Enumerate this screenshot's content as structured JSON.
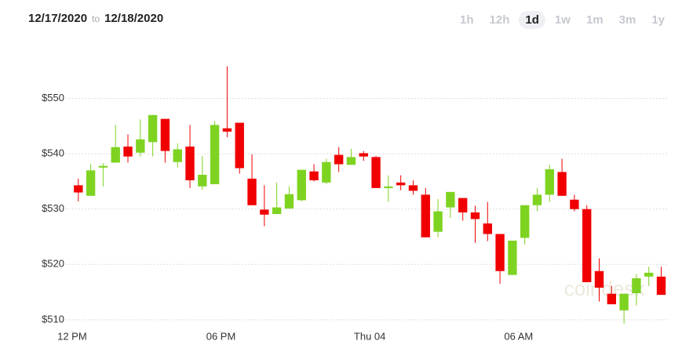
{
  "header": {
    "start_date": "12/17/2020",
    "separator": "to",
    "end_date": "12/18/2020",
    "ranges": [
      "1h",
      "12h",
      "1d",
      "1w",
      "1m",
      "3m",
      "1y"
    ],
    "active_range": "1d"
  },
  "chart_data": {
    "type": "candlestick",
    "watermark": "coindesk",
    "open": [
      534.3,
      532.4,
      537.5,
      538.4,
      541.3,
      540.2,
      542.1,
      546.3,
      538.5,
      541.3,
      534.1,
      534.5,
      544.6,
      545.6,
      535.5,
      529.9,
      529.1,
      530.1,
      531.6,
      536.8,
      534.8,
      539.8,
      538.0,
      540.1,
      539.4,
      533.8,
      534.8,
      534.3,
      532.6,
      525.9,
      530.3,
      532.0,
      529.4,
      527.4,
      525.5,
      518.1,
      524.8,
      530.7,
      532.6,
      536.7,
      531.7,
      530.0,
      518.8,
      514.7,
      511.7,
      514.8,
      517.8,
      517.8
    ],
    "high": [
      535.5,
      538.2,
      538.3,
      545.2,
      543.5,
      546.2,
      547.0,
      546.3,
      541.9,
      545.2,
      539.6,
      545.9,
      555.8,
      545.6,
      539.9,
      534.3,
      534.8,
      534.1,
      537.1,
      538.1,
      539.1,
      541.2,
      540.9,
      540.5,
      539.6,
      536.1,
      536.1,
      535.2,
      533.8,
      531.8,
      533.1,
      532.0,
      530.6,
      531.3,
      525.5,
      524.3,
      530.7,
      533.8,
      538.0,
      539.1,
      532.6,
      530.7,
      521.1,
      516.1,
      514.7,
      518.2,
      519.6,
      519.6
    ],
    "low": [
      531.4,
      532.4,
      534.1,
      538.4,
      538.4,
      539.5,
      539.5,
      538.4,
      537.5,
      533.8,
      533.5,
      534.5,
      543.0,
      536.4,
      530.7,
      526.9,
      529.1,
      530.1,
      531.4,
      535.0,
      534.5,
      536.7,
      538.0,
      538.7,
      533.8,
      531.3,
      533.4,
      532.6,
      524.9,
      524.9,
      528.4,
      527.9,
      523.9,
      524.2,
      516.5,
      518.1,
      523.6,
      529.6,
      531.3,
      532.4,
      529.6,
      516.8,
      513.3,
      512.8,
      509.3,
      512.6,
      516.1,
      514.5
    ],
    "close": [
      533.0,
      537.0,
      537.8,
      541.2,
      539.5,
      542.6,
      547.0,
      540.5,
      540.8,
      535.2,
      536.2,
      545.2,
      544.0,
      537.4,
      530.7,
      529.0,
      530.3,
      532.7,
      537.1,
      535.2,
      538.5,
      538.1,
      539.4,
      539.5,
      533.8,
      534.1,
      534.3,
      533.3,
      524.9,
      529.6,
      533.1,
      529.4,
      528.2,
      525.5,
      518.8,
      524.3,
      530.7,
      532.6,
      537.2,
      532.4,
      530.0,
      516.8,
      515.8,
      512.8,
      514.7,
      517.5,
      518.5,
      514.5
    ],
    "up_color": "#7ed321",
    "down_color": "#f00000",
    "xlim": [
      -1,
      47.6
    ],
    "xticks": [
      {
        "value": -0.5,
        "label": "12 PM"
      },
      {
        "value": 11.5,
        "label": "06 PM"
      },
      {
        "value": 23.5,
        "label": "Thu 04"
      },
      {
        "value": 35.5,
        "label": "06 AM"
      }
    ],
    "ylim": [
      508,
      559
    ],
    "yticks": [
      {
        "value": 510,
        "label": "$510"
      },
      {
        "value": 520,
        "label": "$520"
      },
      {
        "value": 530,
        "label": "$530"
      },
      {
        "value": 540,
        "label": "$540"
      },
      {
        "value": 550,
        "label": "$550"
      }
    ],
    "grid": true
  }
}
